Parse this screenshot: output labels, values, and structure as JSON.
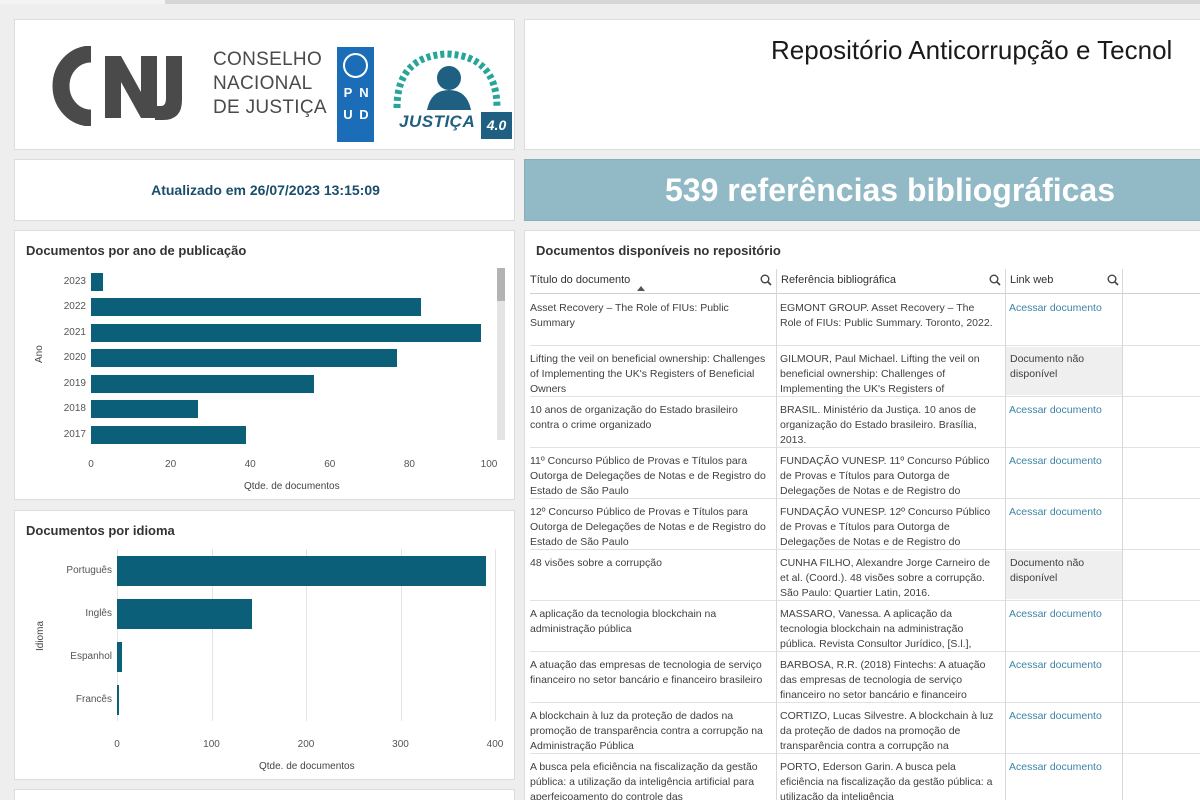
{
  "header": {
    "cnj_line1": "CONSELHO",
    "cnj_line2": "NACIONAL",
    "cnj_line3": "DE JUSTIÇA",
    "pnud_letters": [
      "P",
      "N",
      "U",
      "D"
    ],
    "justica40_word": "JUSTIÇA",
    "justica40_badge": "4.0",
    "title": "Repositório Anticorrupção e Tecnol",
    "updated": "Atualizado em 26/07/2023 13:15:09",
    "count": "539 referências bibliográficas"
  },
  "colors": {
    "bar": "#0b5f78",
    "banner": "#92bac6",
    "link": "#3d84a8"
  },
  "chart_data": [
    {
      "type": "bar",
      "orientation": "horizontal",
      "title": "Documentos por ano de publicação",
      "xlabel": "Qtde. de documentos",
      "ylabel": "Ano",
      "categories": [
        "2023",
        "2022",
        "2021",
        "2020",
        "2019",
        "2018",
        "2017"
      ],
      "values": [
        3,
        83,
        98,
        77,
        56,
        27,
        39
      ],
      "xlim": [
        0,
        100
      ],
      "xticks": [
        "0",
        "20",
        "40",
        "60",
        "80",
        "100"
      ],
      "grid": false
    },
    {
      "type": "bar",
      "orientation": "horizontal",
      "title": "Documentos por idioma",
      "xlabel": "Qtde. de documentos",
      "ylabel": "Idioma",
      "categories": [
        "Português",
        "Inglês",
        "Espanhol",
        "Francês"
      ],
      "values": [
        390,
        143,
        5,
        2
      ],
      "xlim": [
        0,
        400
      ],
      "xticks": [
        "0",
        "100",
        "200",
        "300",
        "400"
      ],
      "grid": true
    }
  ],
  "table": {
    "title": "Documentos disponíveis no repositório",
    "headers": [
      "Título do documento",
      "Referência bibliográfica",
      "Link web"
    ],
    "rows": [
      [
        "Asset Recovery – The Role of FIUs: Public Summary",
        "EGMONT GROUP. Asset Recovery – The Role of FIUs: Public Summary. Toronto, 2022.",
        "Acessar documento"
      ],
      [
        "Lifting the veil on beneficial ownership: Challenges of Implementing the UK's Registers of Beneficial Owners",
        "GILMOUR, Paul Michael. Lifting the veil on beneficial ownership: Challenges of Implementing the UK's Registers of",
        "Documento não disponível"
      ],
      [
        "10 anos de organização do Estado brasileiro contra o crime organizado",
        "BRASIL. Ministério da Justiça. 10 anos de organização do Estado brasileiro. Brasília, 2013.",
        "Acessar documento"
      ],
      [
        "11º Concurso Público de Provas e Títulos para Outorga de Delegações de Notas e de Registro do Estado de São Paulo",
        "FUNDAÇÃO VUNESP. 11º Concurso Público de Provas e Títulos para Outorga de Delegações de Notas e de Registro do",
        "Acessar documento"
      ],
      [
        "12º Concurso Público de Provas e Títulos para Outorga de Delegações de Notas e de Registro do Estado de São Paulo",
        "FUNDAÇÃO VUNESP. 12º Concurso Público de Provas e Títulos para Outorga de Delegações de Notas e de Registro do",
        "Acessar documento"
      ],
      [
        "48 visões sobre a corrupção",
        "CUNHA FILHO, Alexandre Jorge Carneiro de et al. (Coord.). 48 visões sobre a corrupção. São Paulo: Quartier Latin, 2016.",
        "Documento não disponível"
      ],
      [
        "A aplicação da tecnologia blockchain na administração pública",
        "MASSARO, Vanessa. A aplicação da tecnologia blockchain na administração pública. Revista Consultor Jurídico, [S.l.],",
        "Acessar documento"
      ],
      [
        "A atuação das empresas de tecnologia de serviço financeiro no setor bancário e financeiro brasileiro",
        "BARBOSA, R.R. (2018) Fintechs: A atuação das empresas de tecnologia de serviço financeiro no setor bancário e financeiro",
        "Acessar documento"
      ],
      [
        "A blockchain à luz da proteção de dados na promoção de transparência contra a corrupção na Administração Pública",
        "CORTIZO, Lucas Silvestre. A blockchain à luz da proteção de dados na promoção de transparência contra a corrupção na",
        "Acessar documento"
      ],
      [
        "A busca pela eficiência na fiscalização da gestão pública: a utilização da inteligência artificial para aperfeiçoamento do controle das",
        "PORTO, Ederson Garin. A busca pela eficiência na fiscalização da gestão pública: a utilização da inteligência",
        "Acessar documento"
      ]
    ]
  }
}
